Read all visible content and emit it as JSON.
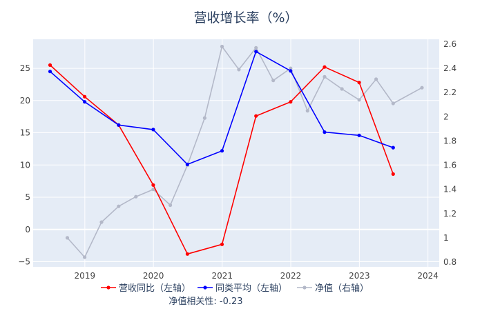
{
  "chart_data": {
    "type": "line",
    "title": "营收增长率（%）",
    "x_axis": {
      "ticks": [
        "2019",
        "2020",
        "2021",
        "2022",
        "2023",
        "2024"
      ],
      "range": [
        "2018-04",
        "2024-03"
      ]
    },
    "y_left": {
      "ticks": [
        "−5",
        "0",
        "5",
        "10",
        "15",
        "20",
        "25"
      ],
      "range": [
        -5.8,
        29.5
      ]
    },
    "y_right": {
      "ticks": [
        "0.8",
        "1",
        "1.2",
        "1.4",
        "1.6",
        "1.8",
        "2",
        "2.2",
        "2.4",
        "2.6"
      ],
      "range": [
        0.76,
        2.64
      ]
    },
    "grid": true,
    "legend_position": "bottom",
    "series": [
      {
        "name": "营收同比（左轴）",
        "color": "#ff0000",
        "axis": "left",
        "points": [
          [
            "2018-06-30",
            25.5
          ],
          [
            "2018-12-31",
            20.6
          ],
          [
            "2019-06-30",
            16.2
          ],
          [
            "2019-12-31",
            6.9
          ],
          [
            "2020-06-30",
            -3.8
          ],
          [
            "2020-12-31",
            -2.3
          ],
          [
            "2021-06-30",
            17.6
          ],
          [
            "2021-12-31",
            19.8
          ],
          [
            "2022-06-30",
            25.2
          ],
          [
            "2022-12-31",
            22.8
          ],
          [
            "2023-06-30",
            8.6
          ]
        ]
      },
      {
        "name": "同类平均（左轴）",
        "color": "#0000ff",
        "axis": "left",
        "points": [
          [
            "2018-06-30",
            24.5
          ],
          [
            "2018-12-31",
            19.8
          ],
          [
            "2019-06-30",
            16.2
          ],
          [
            "2019-12-31",
            15.5
          ],
          [
            "2020-06-30",
            10.1
          ],
          [
            "2020-12-31",
            12.2
          ],
          [
            "2021-06-30",
            27.6
          ],
          [
            "2021-12-31",
            24.6
          ],
          [
            "2022-06-30",
            15.1
          ],
          [
            "2022-12-31",
            14.6
          ],
          [
            "2023-06-30",
            12.7
          ]
        ]
      },
      {
        "name": "净值（右轴）",
        "color": "#b3b8c8",
        "axis": "right",
        "points": [
          [
            "2018-09-30",
            1.0
          ],
          [
            "2018-12-31",
            0.84
          ],
          [
            "2019-03-31",
            1.13
          ],
          [
            "2019-06-30",
            1.26
          ],
          [
            "2019-09-30",
            1.34
          ],
          [
            "2019-12-31",
            1.4
          ],
          [
            "2020-03-31",
            1.27
          ],
          [
            "2020-06-30",
            1.6
          ],
          [
            "2020-09-30",
            1.99
          ],
          [
            "2020-12-31",
            2.58
          ],
          [
            "2021-03-31",
            2.39
          ],
          [
            "2021-06-30",
            2.57
          ],
          [
            "2021-09-30",
            2.3
          ],
          [
            "2021-12-31",
            2.4
          ],
          [
            "2022-03-31",
            2.05
          ],
          [
            "2022-06-30",
            2.33
          ],
          [
            "2022-09-30",
            2.23
          ],
          [
            "2022-12-31",
            2.14
          ],
          [
            "2023-03-31",
            2.31
          ],
          [
            "2023-06-30",
            2.11
          ],
          [
            "2023-11-30",
            2.24
          ]
        ]
      }
    ],
    "annotation": "净值相关性: -0.23"
  }
}
